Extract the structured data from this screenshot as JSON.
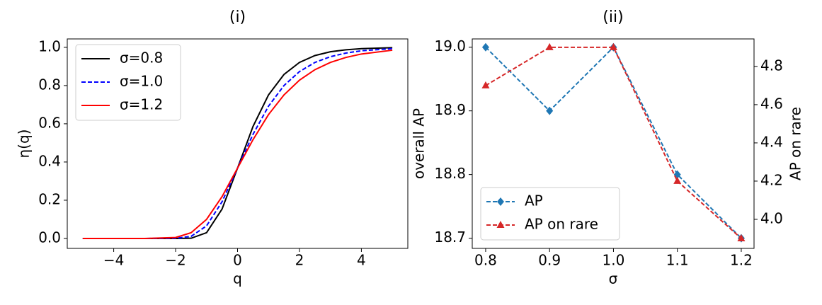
{
  "chart_data": [
    {
      "type": "line",
      "title": "(i)",
      "xlabel": "q",
      "ylabel": "η(q)",
      "x": [
        -5,
        -4,
        -3,
        -2,
        -1.5,
        -1,
        -0.5,
        0,
        0.5,
        1,
        1.5,
        2,
        2.5,
        3,
        3.5,
        4,
        5
      ],
      "series": [
        {
          "name": "σ=0.8",
          "color": "#000000",
          "linestyle": "solid",
          "values": [
            0,
            0,
            0,
            0,
            0.001,
            0.03,
            0.154,
            0.368,
            0.586,
            0.751,
            0.858,
            0.921,
            0.957,
            0.977,
            0.987,
            0.993,
            0.998
          ]
        },
        {
          "name": "σ=1.0",
          "color": "#0000ff",
          "linestyle": "dashed",
          "values": [
            0,
            0,
            0,
            0.001,
            0.011,
            0.066,
            0.192,
            0.368,
            0.545,
            0.692,
            0.8,
            0.873,
            0.921,
            0.951,
            0.97,
            0.982,
            0.993
          ]
        },
        {
          "name": "σ=1.2",
          "color": "#ff0000",
          "linestyle": "solid",
          "values": [
            0,
            0,
            0,
            0.005,
            0.03,
            0.1,
            0.219,
            0.368,
            0.517,
            0.648,
            0.751,
            0.828,
            0.883,
            0.921,
            0.947,
            0.965,
            0.985
          ]
        }
      ],
      "xlim": [
        -5.5,
        5.5
      ],
      "xticks": [
        {
          "value": -4,
          "label": "−4"
        },
        {
          "value": -2,
          "label": "−2"
        },
        0,
        2,
        4
      ],
      "ylim": [
        -0.052,
        1.044
      ],
      "yticks": [
        {
          "value": 0,
          "label": "0.0"
        },
        0.2,
        0.4,
        0.6,
        0.8,
        {
          "value": 1,
          "label": "1.0"
        }
      ],
      "legend": "upper left",
      "grid": false
    },
    {
      "type": "line",
      "title": "(ii)",
      "xlabel": "σ",
      "ylabel": "overall AP",
      "y2label": "AP on rare",
      "ycolor": "#1f77b4",
      "y2color": "#d62728",
      "x": [
        0.8,
        0.9,
        1.0,
        1.1,
        1.2
      ],
      "series": [
        {
          "name": "AP",
          "color": "#1f77b4",
          "linestyle": "dashed",
          "marker": "diamond",
          "values": [
            19.0,
            18.9,
            19.0,
            18.8,
            18.7
          ]
        },
        {
          "name": "AP on rare",
          "color": "#d62728",
          "linestyle": "dashed",
          "marker": "triangle",
          "axis": "y2",
          "values": [
            4.7,
            4.9,
            4.9,
            4.2,
            3.9
          ]
        }
      ],
      "xlim": [
        0.779,
        1.22
      ],
      "xticks": [
        0.8,
        0.9,
        {
          "value": 1,
          "label": "1.0"
        },
        1.1,
        1.2
      ],
      "ylim": [
        18.684,
        19.013
      ],
      "yticks": [
        18.7,
        18.8,
        18.9,
        {
          "value": 19,
          "label": "19.0"
        }
      ],
      "y2lim": [
        3.848,
        4.944
      ],
      "y2ticks": [
        {
          "value": 4,
          "label": "4.0"
        },
        4.2,
        4.4,
        4.6,
        4.8
      ],
      "legend": "lower left",
      "grid": false
    }
  ]
}
